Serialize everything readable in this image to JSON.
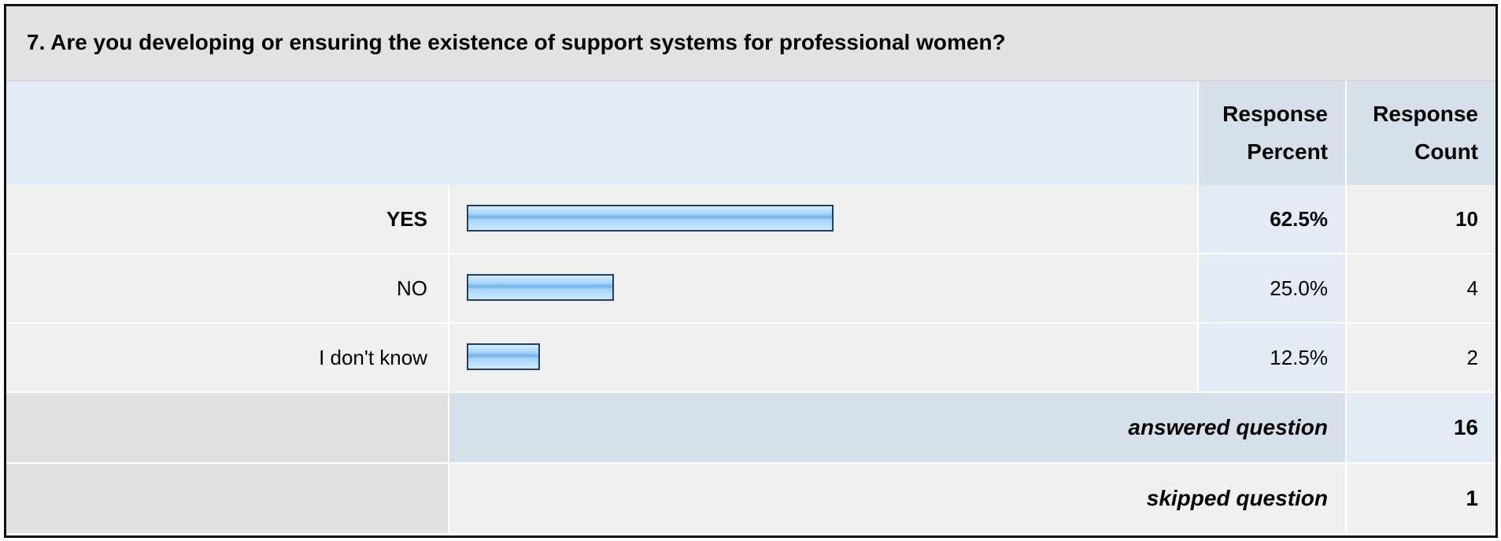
{
  "question": "7. Are you developing or ensuring the existence of support systems for professional women?",
  "headers": {
    "percent_line1": "Response",
    "percent_line2": "Percent",
    "count_line1": "Response",
    "count_line2": "Count"
  },
  "chart_data": {
    "type": "bar",
    "orientation": "horizontal",
    "categories": [
      "YES",
      "NO",
      "I don't know"
    ],
    "values": [
      62.5,
      25.0,
      12.5
    ],
    "percent_labels": [
      "62.5%",
      "25.0%",
      "12.5%"
    ],
    "counts": [
      "10",
      "4",
      "2"
    ],
    "xlim": [
      0,
      100
    ]
  },
  "summary": {
    "answered_label": "answered question",
    "answered_value": "16",
    "skipped_label": "skipped question",
    "skipped_value": "1"
  },
  "colors": {
    "bar_fill": "#a9d6fb",
    "bar_border": "#1f3f6a",
    "header_bg": "#d6e0eb",
    "row_bg": "#f0f0f0"
  }
}
